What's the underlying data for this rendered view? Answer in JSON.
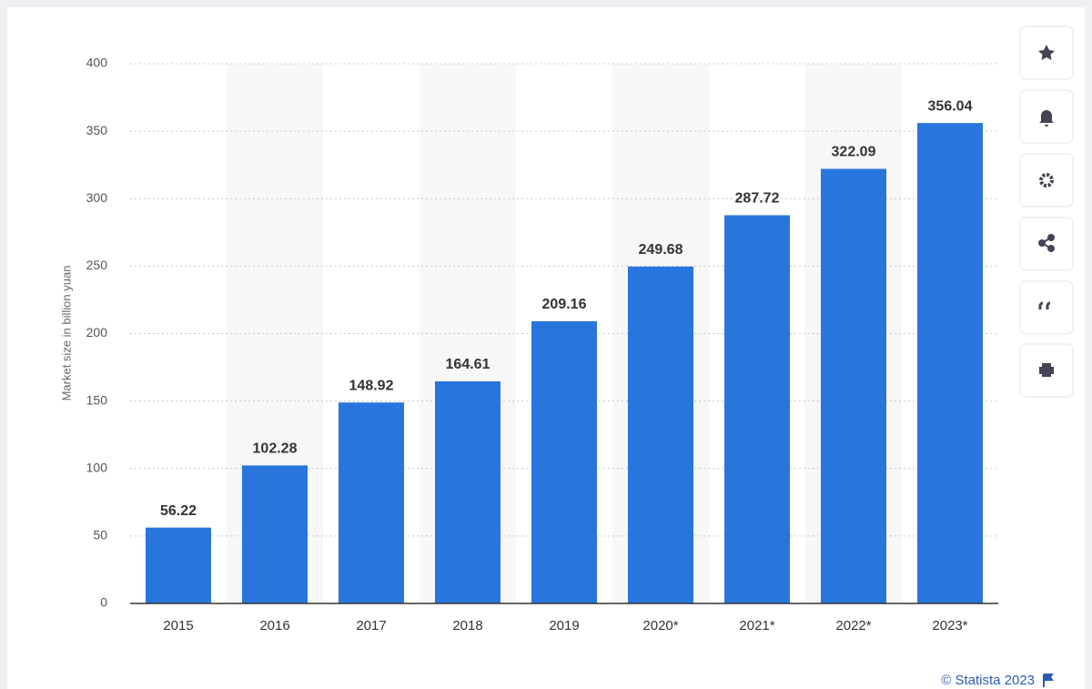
{
  "chart_data": {
    "type": "bar",
    "y_label": "Market size in billion yuan",
    "credit": "© Statista 2023",
    "categories": [
      "2015",
      "2016",
      "2017",
      "2018",
      "2019",
      "2020*",
      "2021*",
      "2022*",
      "2023*"
    ],
    "values": [
      56.22,
      102.28,
      148.92,
      164.61,
      209.16,
      249.68,
      287.72,
      322.09,
      356.04
    ],
    "color": "#2876dd",
    "ylim": [
      0,
      400
    ],
    "yticks": [
      0,
      50,
      100,
      150,
      200,
      250,
      300,
      350,
      400
    ],
    "grid": true
  }
}
